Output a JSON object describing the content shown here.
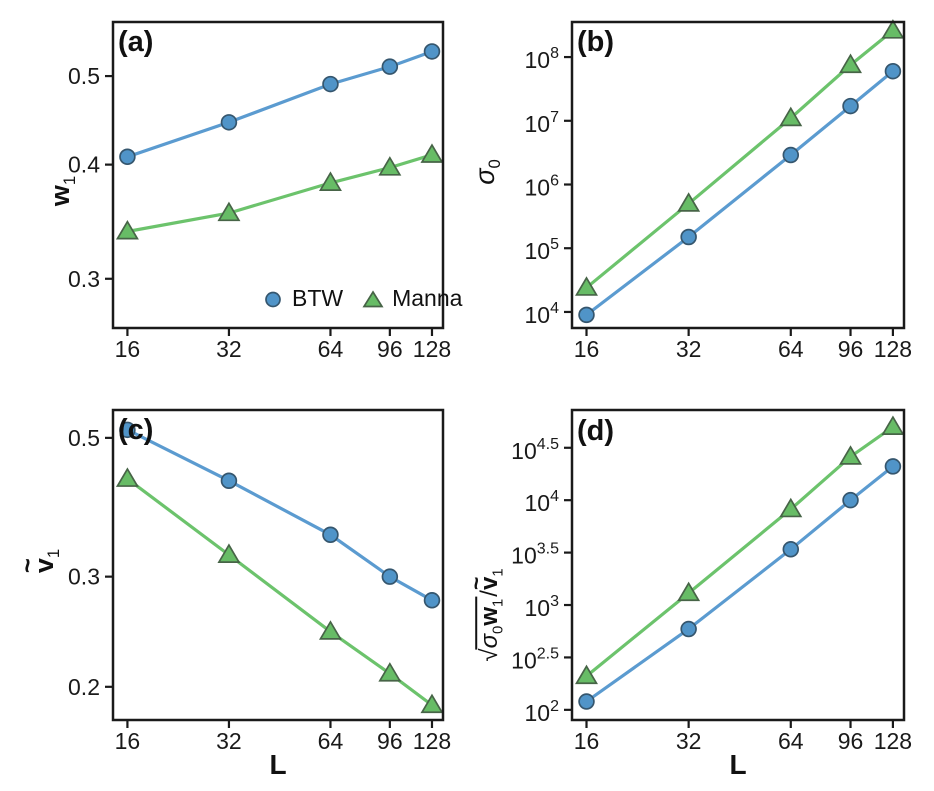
{
  "figure": {
    "description": "Four-panel log-log scaling figure comparing BTW and Manna sandpile models",
    "background": "#ffffff"
  },
  "colors": {
    "btw_line": "#5b9bd0",
    "btw_fill": "#5094c8",
    "btw_edge": "#35566e",
    "manna_line": "#6cc36c",
    "manna_fill": "#67bc66",
    "manna_edge": "#476447",
    "axis": "#1a1a1a",
    "text": "#1a1a1a"
  },
  "legend": {
    "position": "inside panel a, bottom-right",
    "items": [
      {
        "label": "BTW",
        "marker": "circle"
      },
      {
        "label": "Manna",
        "marker": "triangle"
      }
    ]
  },
  "chart_data": [
    {
      "panel": "a",
      "panel_label": "(a)",
      "type": "line",
      "xscale": "log",
      "yscale": "log",
      "xlabel": "",
      "ylabel_text": "w_1",
      "ylabel_parts": [
        {
          "text": "w",
          "bold": true
        },
        {
          "sub": "1"
        }
      ],
      "xlim": [
        14.5,
        138
      ],
      "ylim": [
        0.265,
        0.573
      ],
      "grid": false,
      "xticks": [
        {
          "v": 16,
          "label": "16"
        },
        {
          "v": 32,
          "label": "32"
        },
        {
          "v": 64,
          "label": "64"
        },
        {
          "v": 96,
          "label": "96"
        },
        {
          "v": 128,
          "label": "128"
        }
      ],
      "yticks": [
        {
          "v": 0.5,
          "label": "0.5"
        },
        {
          "v": 0.4,
          "label": "0.4"
        },
        {
          "v": 0.3,
          "label": "0.3"
        }
      ],
      "series": [
        {
          "name": "BTW",
          "marker": "circle",
          "line_color": "#5b9bd0",
          "marker_fill": "#5094c8",
          "marker_edge": "#35566e",
          "x": [
            16,
            32,
            64,
            96,
            128
          ],
          "y": [
            0.408,
            0.445,
            0.49,
            0.512,
            0.532
          ]
        },
        {
          "name": "Manna",
          "marker": "triangle",
          "line_color": "#6cc36c",
          "marker_fill": "#67bc66",
          "marker_edge": "#476447",
          "x": [
            16,
            32,
            64,
            96,
            128
          ],
          "y": [
            0.338,
            0.354,
            0.382,
            0.397,
            0.41
          ]
        }
      ]
    },
    {
      "panel": "b",
      "panel_label": "(b)",
      "type": "line",
      "xscale": "log",
      "yscale": "log",
      "xlabel": "",
      "ylabel_text": "sigma_0",
      "ylabel_parts": [
        {
          "text": "σ",
          "italic": true
        },
        {
          "sub": "0"
        }
      ],
      "xlim": [
        14.5,
        138
      ],
      "ylim": [
        5600,
        355000000
      ],
      "grid": false,
      "xticks": [
        {
          "v": 16,
          "label": "16"
        },
        {
          "v": 32,
          "label": "32"
        },
        {
          "v": 64,
          "label": "64"
        },
        {
          "v": 96,
          "label": "96"
        },
        {
          "v": 128,
          "label": "128"
        }
      ],
      "yticks": [
        {
          "v": 10000,
          "base": "10",
          "exp": "4"
        },
        {
          "v": 100000,
          "base": "10",
          "exp": "5"
        },
        {
          "v": 1000000,
          "base": "10",
          "exp": "6"
        },
        {
          "v": 10000000,
          "base": "10",
          "exp": "7"
        },
        {
          "v": 100000000,
          "base": "10",
          "exp": "8"
        }
      ],
      "series": [
        {
          "name": "BTW",
          "marker": "circle",
          "line_color": "#5b9bd0",
          "marker_fill": "#5094c8",
          "marker_edge": "#35566e",
          "x": [
            16,
            32,
            64,
            96,
            128
          ],
          "y": [
            9000,
            150000,
            2900000,
            17000000,
            60000000
          ]
        },
        {
          "name": "Manna",
          "marker": "triangle",
          "line_color": "#6cc36c",
          "marker_fill": "#67bc66",
          "marker_edge": "#476447",
          "x": [
            16,
            32,
            64,
            96,
            128
          ],
          "y": [
            24000,
            500000,
            11000000,
            75000000,
            260000000
          ]
        }
      ]
    },
    {
      "panel": "c",
      "panel_label": "(c)",
      "type": "line",
      "xscale": "log",
      "yscale": "log",
      "xlabel": "L",
      "ylabel_text": "v~_1",
      "ylabel_parts": [
        {
          "text": "v",
          "bold": true,
          "tilde": true
        },
        {
          "sub": "1"
        }
      ],
      "xlim": [
        14.5,
        138
      ],
      "ylim": [
        0.177,
        0.554
      ],
      "grid": false,
      "xticks": [
        {
          "v": 16,
          "label": "16"
        },
        {
          "v": 32,
          "label": "32"
        },
        {
          "v": 64,
          "label": "64"
        },
        {
          "v": 96,
          "label": "96"
        },
        {
          "v": 128,
          "label": "128"
        }
      ],
      "yticks": [
        {
          "v": 0.5,
          "label": "0.5"
        },
        {
          "v": 0.3,
          "label": "0.3"
        },
        {
          "v": 0.2,
          "label": "0.2"
        }
      ],
      "series": [
        {
          "name": "BTW",
          "marker": "circle",
          "line_color": "#5b9bd0",
          "marker_fill": "#5094c8",
          "marker_edge": "#35566e",
          "x": [
            16,
            32,
            64,
            96,
            128
          ],
          "y": [
            0.515,
            0.427,
            0.35,
            0.3,
            0.275
          ]
        },
        {
          "name": "Manna",
          "marker": "triangle",
          "line_color": "#6cc36c",
          "marker_fill": "#67bc66",
          "marker_edge": "#476447",
          "x": [
            16,
            32,
            64,
            96,
            128
          ],
          "y": [
            0.43,
            0.325,
            0.245,
            0.21,
            0.187
          ]
        }
      ]
    },
    {
      "panel": "d",
      "panel_label": "(d)",
      "type": "line",
      "xscale": "log",
      "yscale": "log",
      "xlabel": "L",
      "ylabel_text": "sqrt(sigma_0 w_1)/v~_1",
      "ylabel_parts": [
        {
          "sqrt_open": true
        },
        {
          "text": "σ",
          "italic": true
        },
        {
          "sub": "0"
        },
        {
          "text": "w",
          "bold": true
        },
        {
          "sub": "1"
        },
        {
          "sqrt_close": true
        },
        {
          "text": "/"
        },
        {
          "text": "v",
          "bold": true,
          "tilde": true
        },
        {
          "sub": "1"
        }
      ],
      "xlim": [
        14.5,
        138
      ],
      "ylim": [
        80,
        72500
      ],
      "grid": false,
      "xticks": [
        {
          "v": 16,
          "label": "16"
        },
        {
          "v": 32,
          "label": "32"
        },
        {
          "v": 64,
          "label": "64"
        },
        {
          "v": 96,
          "label": "96"
        },
        {
          "v": 128,
          "label": "128"
        }
      ],
      "yticks": [
        {
          "v": 100,
          "base": "10",
          "exp": "2"
        },
        {
          "v": 316.23,
          "base": "10",
          "exp": "2.5"
        },
        {
          "v": 1000,
          "base": "10",
          "exp": "3"
        },
        {
          "v": 3162.3,
          "base": "10",
          "exp": "3.5"
        },
        {
          "v": 10000,
          "base": "10",
          "exp": "4"
        },
        {
          "v": 31623,
          "base": "10",
          "exp": "4.5"
        }
      ],
      "series": [
        {
          "name": "BTW",
          "marker": "circle",
          "line_color": "#5b9bd0",
          "marker_fill": "#5094c8",
          "marker_edge": "#35566e",
          "x": [
            16,
            32,
            64,
            96,
            128
          ],
          "y": [
            120,
            590,
            3400,
            10000,
            21000
          ]
        },
        {
          "name": "Manna",
          "marker": "triangle",
          "line_color": "#6cc36c",
          "marker_fill": "#67bc66",
          "marker_edge": "#476447",
          "x": [
            16,
            32,
            64,
            96,
            128
          ],
          "y": [
            210,
            1300,
            8200,
            26000,
            50000
          ]
        }
      ]
    }
  ]
}
